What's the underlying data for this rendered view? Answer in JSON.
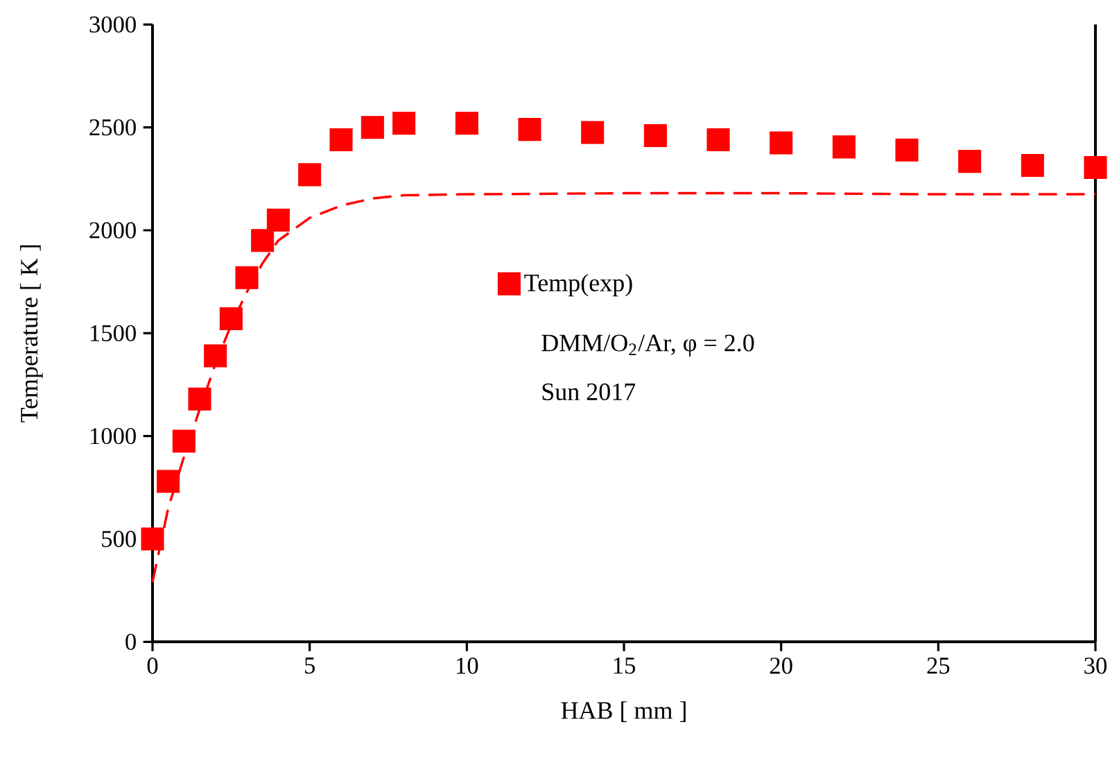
{
  "chart_data": {
    "type": "scatter",
    "xlabel": "HAB [ mm ]",
    "ylabel": "Temperature [ K ]",
    "xlim": [
      0,
      30
    ],
    "ylim": [
      0,
      3000
    ],
    "xticks": [
      0,
      5,
      10,
      15,
      20,
      25,
      30
    ],
    "yticks": [
      0,
      500,
      1000,
      1500,
      2000,
      2500,
      3000
    ],
    "grid": false,
    "legend": "center",
    "marker": "square",
    "series": [
      {
        "name": "Temp(exp)",
        "color": "#ff0000",
        "x": [
          0,
          0.5,
          1,
          1.5,
          2,
          2.5,
          3,
          3.5,
          4,
          5,
          6,
          7,
          8,
          10,
          12,
          14,
          16,
          18,
          20,
          22,
          24,
          26,
          28,
          30
        ],
        "values": [
          500,
          780,
          975,
          1180,
          1390,
          1570,
          1770,
          1950,
          2050,
          2270,
          2440,
          2500,
          2520,
          2520,
          2490,
          2475,
          2460,
          2440,
          2425,
          2405,
          2390,
          2335,
          2315,
          2305
        ]
      },
      {
        "type": "line",
        "color": "#ff0000",
        "marker": "none",
        "line_style": "dashed",
        "x": [
          0,
          0.5,
          1,
          1.5,
          2,
          2.5,
          3,
          3.5,
          4,
          5,
          6,
          7,
          8,
          10,
          15,
          20,
          25,
          30
        ],
        "values": [
          290,
          650,
          900,
          1130,
          1350,
          1540,
          1700,
          1840,
          1950,
          2060,
          2120,
          2155,
          2170,
          2175,
          2180,
          2180,
          2175,
          2175
        ]
      }
    ],
    "annotations": [
      "DMM/O$_{2}$/Ar, φ = 2.0",
      "Sun 2017"
    ]
  }
}
